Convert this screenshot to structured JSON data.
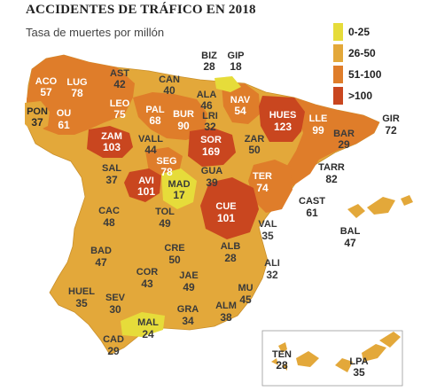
{
  "title": "ACCIDENTES DE TRÁFICO EN 2018",
  "subtitle": "Tasa de muertes por millón",
  "legend": [
    {
      "label": "0-25",
      "color": "#e6dc3a"
    },
    {
      "label": "26-50",
      "color": "#e3a83a"
    },
    {
      "label": "51-100",
      "color": "#df7d2a"
    },
    {
      "label": ">100",
      "color": "#c9461f"
    }
  ],
  "provinces": [
    {
      "code": "ACO",
      "value": "57"
    },
    {
      "code": "LUG",
      "value": "78"
    },
    {
      "code": "AST",
      "value": "42"
    },
    {
      "code": "CAN",
      "value": "40"
    },
    {
      "code": "BIZ",
      "value": "28"
    },
    {
      "code": "GIP",
      "value": "18"
    },
    {
      "code": "ALA",
      "value": "46"
    },
    {
      "code": "NAV",
      "value": "54"
    },
    {
      "code": "HUES",
      "value": "123"
    },
    {
      "code": "LLE",
      "value": "99"
    },
    {
      "code": "GIR",
      "value": "72"
    },
    {
      "code": "PON",
      "value": "37"
    },
    {
      "code": "OU",
      "value": "61"
    },
    {
      "code": "LEO",
      "value": "75"
    },
    {
      "code": "PAL",
      "value": "68"
    },
    {
      "code": "BUR",
      "value": "90"
    },
    {
      "code": "LRI",
      "value": "32"
    },
    {
      "code": "BAR",
      "value": "29"
    },
    {
      "code": "ZAM",
      "value": "103"
    },
    {
      "code": "VALL",
      "value": "44"
    },
    {
      "code": "SOR",
      "value": "169"
    },
    {
      "code": "ZAR",
      "value": "50"
    },
    {
      "code": "TARR",
      "value": "82"
    },
    {
      "code": "SAL",
      "value": "37"
    },
    {
      "code": "SEG",
      "value": "78"
    },
    {
      "code": "GUA",
      "value": "39"
    },
    {
      "code": "TER",
      "value": "74"
    },
    {
      "code": "AVI",
      "value": "101"
    },
    {
      "code": "MAD",
      "value": "17"
    },
    {
      "code": "CAST",
      "value": "61"
    },
    {
      "code": "CUE",
      "value": "101"
    },
    {
      "code": "CAC",
      "value": "48"
    },
    {
      "code": "TOL",
      "value": "49"
    },
    {
      "code": "VAL",
      "value": "35"
    },
    {
      "code": "BAL",
      "value": "47"
    },
    {
      "code": "BAD",
      "value": "47"
    },
    {
      "code": "CRE",
      "value": "50"
    },
    {
      "code": "ALB",
      "value": "28"
    },
    {
      "code": "ALI",
      "value": "32"
    },
    {
      "code": "COR",
      "value": "43"
    },
    {
      "code": "JAE",
      "value": "49"
    },
    {
      "code": "HUEL",
      "value": "35"
    },
    {
      "code": "SEV",
      "value": "30"
    },
    {
      "code": "MU",
      "value": "45"
    },
    {
      "code": "GRA",
      "value": "34"
    },
    {
      "code": "ALM",
      "value": "38"
    },
    {
      "code": "MAL",
      "value": "24"
    },
    {
      "code": "CAD",
      "value": "29"
    },
    {
      "code": "TEN",
      "value": "28"
    },
    {
      "code": "LPA",
      "value": "35"
    }
  ]
}
